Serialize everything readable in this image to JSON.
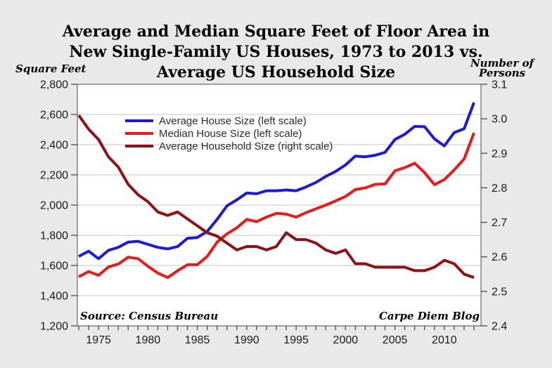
{
  "title": {
    "line1": "Average and Median Square Feet of Floor Area in",
    "line2": "New Single-Family US Houses, 1973 to 2013 vs.",
    "line3": "Average US Household Size"
  },
  "axis_unit_labels": {
    "left": "Square Feet",
    "right_line1": "Number of",
    "right_line2": "Persons"
  },
  "notes": {
    "source": "Source: Census Bureau",
    "credit": "Carpe Diem Blog"
  },
  "colors": {
    "background": "#e9e9e9",
    "plot_background": "#ffffff",
    "gridline": "#c6c6c6",
    "axis": "#4a4a4a",
    "tick_text": "#1a1a1a",
    "title_text": "#000000"
  },
  "chart_data": {
    "type": "line",
    "title": "Average and Median Square Feet of Floor Area in New Single-Family US Houses, 1973 to 2013 vs. Average US Household Size",
    "grid": "horizontal-only",
    "legend_position": "inside-top-left",
    "x": [
      1973,
      1974,
      1975,
      1976,
      1977,
      1978,
      1979,
      1980,
      1981,
      1982,
      1983,
      1984,
      1985,
      1986,
      1987,
      1988,
      1989,
      1990,
      1991,
      1992,
      1993,
      1994,
      1995,
      1996,
      1997,
      1998,
      1999,
      2000,
      2001,
      2002,
      2003,
      2004,
      2005,
      2006,
      2007,
      2008,
      2009,
      2010,
      2011,
      2012,
      2013
    ],
    "x_axis": {
      "range": [
        1973,
        2013
      ],
      "tick_interval_years": 1,
      "label_years": [
        1975,
        1980,
        1985,
        1990,
        1995,
        2000,
        2005,
        2010
      ],
      "label_texts": [
        "1975",
        "1980",
        "1985",
        "1990",
        "1995",
        "2000",
        "2005",
        "2010"
      ]
    },
    "left_axis": {
      "title": "Square Feet",
      "min": 1200,
      "max": 2800,
      "tick_values": [
        2800,
        2600,
        2400,
        2200,
        2000,
        1800,
        1600,
        1400,
        1200
      ],
      "tick_labels": [
        "2,800",
        "2,600",
        "2,400",
        "2,200",
        "2,000",
        "1,800",
        "1,600",
        "1,400",
        "1,200"
      ]
    },
    "right_axis": {
      "title": "Number of Persons",
      "min": 2.4,
      "max": 3.1,
      "tick_values": [
        3.1,
        3.0,
        2.9,
        2.8,
        2.7,
        2.6,
        2.5,
        2.4
      ],
      "tick_labels": [
        "3.1",
        "3.0",
        "2.9",
        "2.8",
        "2.7",
        "2.6",
        "2.5",
        "2.4"
      ]
    },
    "series": [
      {
        "key": "average-house-size",
        "name": "Average House Size (left scale)",
        "scale": "left",
        "color": "#1b1bd7",
        "values": [
          1660,
          1695,
          1645,
          1700,
          1720,
          1755,
          1760,
          1740,
          1720,
          1710,
          1725,
          1780,
          1785,
          1825,
          1905,
          1995,
          2035,
          2080,
          2075,
          2095,
          2095,
          2100,
          2095,
          2120,
          2150,
          2190,
          2223,
          2266,
          2324,
          2320,
          2330,
          2349,
          2434,
          2469,
          2521,
          2519,
          2438,
          2392,
          2480,
          2505,
          2679
        ]
      },
      {
        "key": "median-house-size",
        "name": "Median House Size (left scale)",
        "scale": "left",
        "color": "#e81a1a",
        "values": [
          1525,
          1560,
          1535,
          1590,
          1610,
          1655,
          1645,
          1595,
          1550,
          1520,
          1565,
          1605,
          1605,
          1660,
          1755,
          1810,
          1850,
          1905,
          1890,
          1920,
          1945,
          1940,
          1920,
          1950,
          1975,
          2000,
          2028,
          2057,
          2103,
          2114,
          2137,
          2140,
          2227,
          2248,
          2277,
          2215,
          2135,
          2169,
          2233,
          2306,
          2478
        ]
      },
      {
        "key": "average-household-size",
        "name": "Average Household Size (right scale)",
        "scale": "right",
        "color": "#8c1216",
        "values": [
          3.01,
          2.97,
          2.94,
          2.89,
          2.86,
          2.81,
          2.78,
          2.76,
          2.73,
          2.72,
          2.73,
          2.71,
          2.69,
          2.67,
          2.66,
          2.64,
          2.62,
          2.63,
          2.63,
          2.62,
          2.63,
          2.67,
          2.65,
          2.65,
          2.64,
          2.62,
          2.61,
          2.62,
          2.58,
          2.58,
          2.57,
          2.57,
          2.57,
          2.57,
          2.56,
          2.56,
          2.57,
          2.59,
          2.58,
          2.55,
          2.54
        ]
      }
    ]
  }
}
